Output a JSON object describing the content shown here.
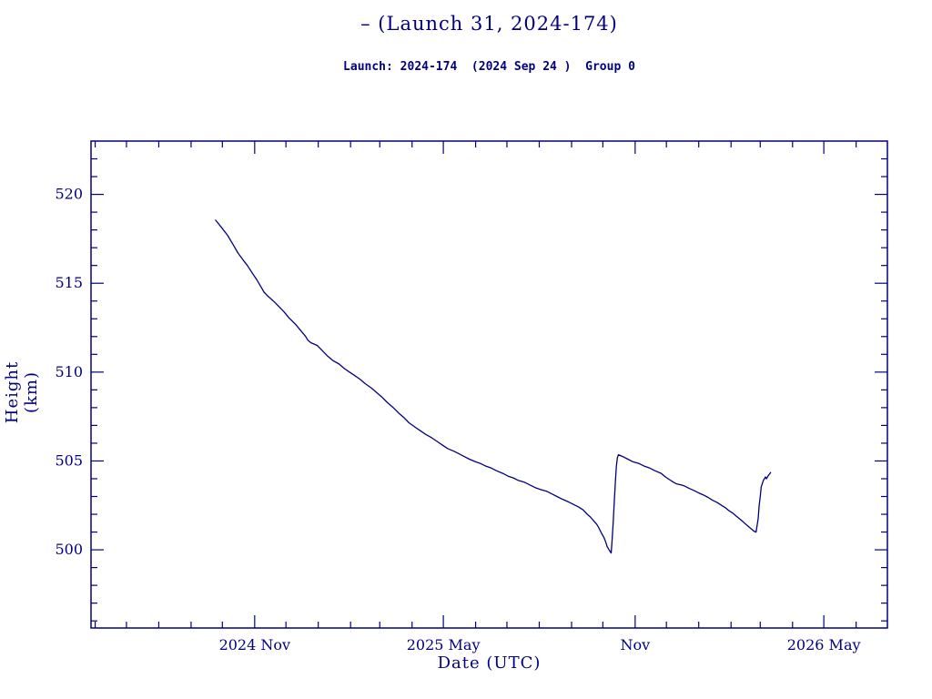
{
  "page": {
    "background": "#ffffff",
    "accent": "#000080"
  },
  "header": {
    "title": "– (Launch 31, 2024-174)",
    "subtitle": "Launch: 2024-174  (2024 Sep 24 )  Group 0"
  },
  "chart_data": {
    "type": "line",
    "title": "– (Launch 31, 2024-174)",
    "subtitle": "Launch: 2024-174  (2024 Sep 24 )  Group 0",
    "xlabel": "Date (UTC)",
    "ylabel": "Height (km)",
    "x_unit": "days since launch 2024 Sep 24",
    "xlim": [
      -119,
      645
    ],
    "ylim": [
      495.6,
      523.0
    ],
    "grid": false,
    "legend": "none",
    "line_color": "#000080",
    "x_major_ticks": [
      {
        "value": 38,
        "label": "2024 Nov"
      },
      {
        "value": 219,
        "label": "2025 May"
      },
      {
        "value": 403,
        "label": "Nov"
      },
      {
        "value": 584,
        "label": "2026 May"
      }
    ],
    "x_minor_ticks": [
      -115,
      -85,
      -54,
      -23,
      7,
      68,
      99,
      130,
      158,
      189,
      250,
      280,
      311,
      342,
      372,
      433,
      464,
      495,
      523,
      554,
      615
    ],
    "y_major_ticks": [
      {
        "value": 500,
        "label": "500"
      },
      {
        "value": 505,
        "label": "505"
      },
      {
        "value": 510,
        "label": "510"
      },
      {
        "value": 515,
        "label": "515"
      },
      {
        "value": 520,
        "label": "520"
      }
    ],
    "y_minor_ticks": [
      496,
      497,
      498,
      499,
      501,
      502,
      503,
      504,
      506,
      507,
      508,
      509,
      511,
      512,
      513,
      514,
      516,
      517,
      518,
      519,
      521,
      522
    ],
    "series": [
      {
        "name": "satellite-height",
        "points": [
          [
            0.5,
            518.55
          ],
          [
            6,
            518.15
          ],
          [
            12,
            517.7
          ],
          [
            17,
            517.2
          ],
          [
            22,
            516.7
          ],
          [
            27,
            516.3
          ],
          [
            31,
            516.0
          ],
          [
            36,
            515.55
          ],
          [
            40,
            515.2
          ],
          [
            44,
            514.8
          ],
          [
            47,
            514.5
          ],
          [
            51,
            514.25
          ],
          [
            56,
            514.0
          ],
          [
            61,
            513.7
          ],
          [
            66,
            513.4
          ],
          [
            71,
            513.05
          ],
          [
            77,
            512.7
          ],
          [
            82,
            512.35
          ],
          [
            87,
            512.0
          ],
          [
            89,
            511.8
          ],
          [
            92,
            511.65
          ],
          [
            98,
            511.5
          ],
          [
            103,
            511.2
          ],
          [
            108,
            510.9
          ],
          [
            113,
            510.65
          ],
          [
            119,
            510.45
          ],
          [
            124,
            510.2
          ],
          [
            129,
            510.0
          ],
          [
            134,
            509.8
          ],
          [
            139,
            509.6
          ],
          [
            144,
            509.35
          ],
          [
            150,
            509.1
          ],
          [
            155,
            508.85
          ],
          [
            160,
            508.6
          ],
          [
            165,
            508.3
          ],
          [
            171,
            508.0
          ],
          [
            176,
            507.7
          ],
          [
            181,
            507.45
          ],
          [
            186,
            507.15
          ],
          [
            192,
            506.9
          ],
          [
            197,
            506.7
          ],
          [
            202,
            506.5
          ],
          [
            208,
            506.3
          ],
          [
            213,
            506.1
          ],
          [
            218,
            505.9
          ],
          [
            223,
            505.7
          ],
          [
            229,
            505.55
          ],
          [
            234,
            505.4
          ],
          [
            239,
            505.25
          ],
          [
            244,
            505.1
          ],
          [
            250,
            504.95
          ],
          [
            255,
            504.85
          ],
          [
            260,
            504.7
          ],
          [
            265,
            504.6
          ],
          [
            270,
            504.45
          ],
          [
            276,
            504.3
          ],
          [
            281,
            504.15
          ],
          [
            286,
            504.05
          ],
          [
            291,
            503.9
          ],
          [
            297,
            503.8
          ],
          [
            302,
            503.65
          ],
          [
            307,
            503.5
          ],
          [
            312,
            503.4
          ],
          [
            318,
            503.3
          ],
          [
            323,
            503.15
          ],
          [
            328,
            503.0
          ],
          [
            333,
            502.85
          ],
          [
            339,
            502.7
          ],
          [
            344,
            502.55
          ],
          [
            349,
            502.4
          ],
          [
            353,
            502.25
          ],
          [
            357,
            502.0
          ],
          [
            360,
            501.85
          ],
          [
            363,
            501.65
          ],
          [
            366,
            501.45
          ],
          [
            368,
            501.25
          ],
          [
            371,
            500.9
          ],
          [
            373,
            500.7
          ],
          [
            375,
            500.4
          ],
          [
            376,
            500.2
          ],
          [
            378,
            500.0
          ],
          [
            379,
            499.9
          ],
          [
            380,
            499.82
          ],
          [
            381,
            500.6
          ],
          [
            382,
            501.6
          ],
          [
            383,
            502.7
          ],
          [
            384,
            503.8
          ],
          [
            385,
            504.7
          ],
          [
            386,
            505.2
          ],
          [
            387,
            505.35
          ],
          [
            391,
            505.25
          ],
          [
            396,
            505.1
          ],
          [
            401,
            504.95
          ],
          [
            407,
            504.85
          ],
          [
            412,
            504.7
          ],
          [
            417,
            504.6
          ],
          [
            422,
            504.45
          ],
          [
            428,
            504.3
          ],
          [
            432,
            504.1
          ],
          [
            436,
            503.95
          ],
          [
            440,
            503.8
          ],
          [
            443,
            503.7
          ],
          [
            447,
            503.65
          ],
          [
            450,
            503.6
          ],
          [
            455,
            503.45
          ],
          [
            459,
            503.35
          ],
          [
            464,
            503.2
          ],
          [
            468,
            503.1
          ],
          [
            473,
            502.95
          ],
          [
            477,
            502.8
          ],
          [
            482,
            502.65
          ],
          [
            486,
            502.5
          ],
          [
            490,
            502.35
          ],
          [
            493,
            502.2
          ],
          [
            497,
            502.05
          ],
          [
            500,
            501.9
          ],
          [
            503,
            501.75
          ],
          [
            506,
            501.6
          ],
          [
            509,
            501.45
          ],
          [
            511,
            501.35
          ],
          [
            513,
            501.25
          ],
          [
            515,
            501.15
          ],
          [
            517,
            501.05
          ],
          [
            519,
            501.0
          ],
          [
            521,
            501.75
          ],
          [
            522,
            502.5
          ],
          [
            523,
            503.0
          ],
          [
            524,
            503.55
          ],
          [
            526,
            503.9
          ],
          [
            528,
            504.1
          ],
          [
            529,
            504.0
          ],
          [
            531,
            504.2
          ],
          [
            533,
            504.35
          ]
        ]
      }
    ]
  }
}
